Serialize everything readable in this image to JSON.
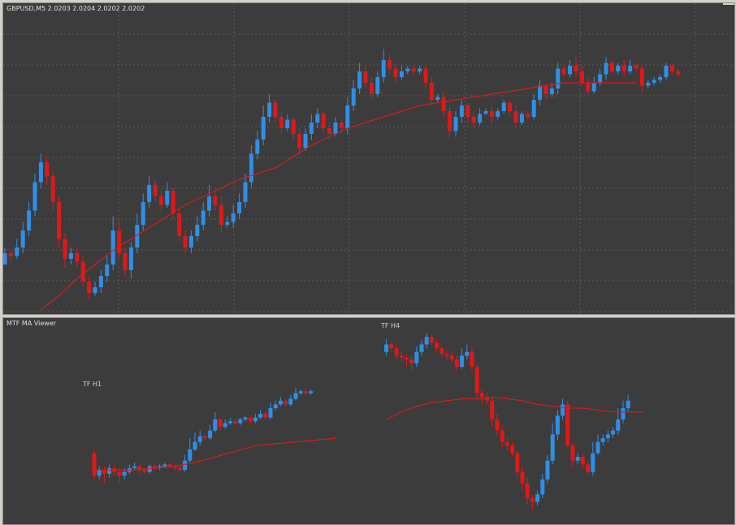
{
  "chart": {
    "symbol_header": "GBPUSD,M5  2.0203 2.0204 2.0202 2.0202",
    "indicator_name": "MTF MA Viewer",
    "tf_h1_label": "TF H1",
    "tf_h4_label": "TF H4"
  },
  "colors": {
    "background": "#3c3c3c",
    "grid": "#5a5a5a",
    "bull": "#2f8fe8",
    "bear": "#e01818",
    "doji": "#22c422",
    "ma": "#d21e1e",
    "frame": "#d4d0c8"
  },
  "chart_data": [
    {
      "type": "candlestick",
      "title": "GBPUSD,M5",
      "price_readout": "2.0203 2.0204 2.0202 2.0202",
      "ylim": [
        0,
        100
      ],
      "grid": true,
      "candles": [
        [
          16,
          20,
          18,
          22
        ],
        [
          20,
          19,
          21,
          17
        ],
        [
          19,
          22,
          25,
          18
        ],
        [
          22,
          28,
          31,
          20
        ],
        [
          28,
          35,
          38,
          26
        ],
        [
          35,
          45,
          48,
          33
        ],
        [
          45,
          52,
          55,
          43
        ],
        [
          52,
          47,
          54,
          44
        ],
        [
          47,
          38,
          49,
          35
        ],
        [
          38,
          25,
          40,
          22
        ],
        [
          25,
          18,
          27,
          15
        ],
        [
          18,
          20,
          22,
          16
        ],
        [
          20,
          17,
          22,
          15
        ],
        [
          17,
          10,
          19,
          8
        ],
        [
          10,
          6,
          12,
          4
        ],
        [
          6,
          8,
          10,
          5
        ],
        [
          8,
          12,
          14,
          6
        ],
        [
          12,
          16,
          19,
          10
        ],
        [
          16,
          28,
          33,
          14
        ],
        [
          28,
          20,
          31,
          18
        ],
        [
          20,
          14,
          22,
          12
        ],
        [
          14,
          22,
          24,
          11
        ],
        [
          22,
          30,
          34,
          20
        ],
        [
          30,
          38,
          41,
          28
        ],
        [
          38,
          44,
          47,
          36
        ],
        [
          44,
          40,
          46,
          38
        ],
        [
          40,
          37,
          42,
          35
        ],
        [
          37,
          42,
          45,
          36
        ],
        [
          42,
          34,
          43,
          32
        ],
        [
          34,
          26,
          36,
          24
        ],
        [
          26,
          22,
          28,
          20
        ],
        [
          22,
          26,
          28,
          20
        ],
        [
          26,
          30,
          33,
          24
        ],
        [
          30,
          35,
          38,
          28
        ],
        [
          35,
          40,
          44,
          33
        ],
        [
          40,
          37,
          42,
          35
        ],
        [
          37,
          30,
          40,
          27
        ],
        [
          30,
          31,
          33,
          29
        ],
        [
          31,
          34,
          37,
          29
        ],
        [
          34,
          38,
          41,
          32
        ],
        [
          38,
          45,
          48,
          36
        ],
        [
          45,
          55,
          58,
          43
        ],
        [
          55,
          60,
          63,
          53
        ],
        [
          60,
          68,
          72,
          58
        ],
        [
          68,
          73,
          76,
          66
        ],
        [
          73,
          68,
          74,
          66
        ],
        [
          68,
          64,
          70,
          62
        ],
        [
          64,
          67,
          69,
          63
        ],
        [
          67,
          62,
          68,
          60
        ],
        [
          62,
          57,
          64,
          55
        ],
        [
          57,
          62,
          64,
          56
        ],
        [
          62,
          66,
          69,
          60
        ],
        [
          66,
          69,
          71,
          64
        ],
        [
          69,
          64,
          70,
          62
        ],
        [
          64,
          62,
          66,
          60
        ],
        [
          62,
          66,
          68,
          61
        ],
        [
          66,
          64,
          67,
          62
        ],
        [
          64,
          72,
          75,
          62
        ],
        [
          72,
          78,
          81,
          70
        ],
        [
          78,
          84,
          87,
          76
        ],
        [
          84,
          80,
          86,
          78
        ],
        [
          80,
          76,
          82,
          74
        ],
        [
          76,
          82,
          84,
          75
        ],
        [
          82,
          88,
          92,
          80
        ],
        [
          88,
          85,
          90,
          83
        ],
        [
          85,
          82,
          87,
          80
        ],
        [
          82,
          84,
          86,
          81
        ],
        [
          84,
          85,
          86,
          83
        ],
        [
          85,
          84,
          86,
          83
        ],
        [
          84,
          85,
          86,
          83
        ],
        [
          85,
          80,
          86,
          78
        ],
        [
          80,
          74,
          82,
          72
        ],
        [
          74,
          75,
          76,
          73
        ],
        [
          75,
          70,
          77,
          68
        ],
        [
          70,
          63,
          72,
          61
        ],
        [
          63,
          68,
          70,
          61
        ],
        [
          68,
          72,
          74,
          66
        ],
        [
          72,
          68,
          73,
          66
        ],
        [
          68,
          66,
          70,
          64
        ],
        [
          66,
          69,
          71,
          65
        ],
        [
          69,
          70,
          71,
          69
        ],
        [
          70,
          68,
          72,
          66
        ],
        [
          68,
          70,
          71,
          67
        ],
        [
          70,
          73,
          74,
          69
        ],
        [
          73,
          70,
          74,
          68
        ],
        [
          70,
          66,
          72,
          64
        ],
        [
          66,
          69,
          70,
          65
        ],
        [
          69,
          68,
          70,
          67
        ],
        [
          68,
          74,
          76,
          67
        ],
        [
          74,
          79,
          81,
          72
        ],
        [
          79,
          76,
          80,
          74
        ],
        [
          76,
          78,
          80,
          75
        ],
        [
          78,
          85,
          87,
          76
        ],
        [
          85,
          83,
          86,
          82
        ],
        [
          83,
          86,
          88,
          82
        ],
        [
          86,
          84,
          89,
          82
        ],
        [
          84,
          80,
          86,
          79
        ],
        [
          80,
          77,
          82,
          76
        ],
        [
          77,
          80,
          82,
          76
        ],
        [
          80,
          83,
          85,
          79
        ],
        [
          83,
          87,
          89,
          81
        ],
        [
          87,
          84,
          88,
          83
        ],
        [
          84,
          86,
          87,
          83
        ],
        [
          86,
          84,
          88,
          82
        ],
        [
          84,
          86,
          88,
          83
        ],
        [
          86,
          85,
          87,
          84
        ],
        [
          85,
          79,
          86,
          77
        ],
        [
          79,
          80,
          81,
          78
        ],
        [
          80,
          81,
          82,
          79
        ],
        [
          81,
          82,
          83,
          80
        ],
        [
          82,
          86,
          87,
          81
        ],
        [
          86,
          84,
          87,
          83
        ],
        [
          84,
          83,
          85,
          82
        ]
      ],
      "ma": [
        0,
        5,
        11,
        16,
        21,
        25,
        29,
        33,
        37,
        40,
        43,
        46,
        48,
        50,
        54,
        58,
        61,
        64,
        66,
        68,
        70,
        72,
        73,
        74,
        75,
        76,
        77,
        78,
        79,
        80,
        80,
        80,
        80,
        80
      ],
      "ma_start_index": 6,
      "ma_step": 3
    },
    {
      "type": "candlestick",
      "title": "MTF MA Viewer",
      "ylim": [
        0,
        100
      ],
      "segments": [
        {
          "name": "TF H1",
          "start_index": 0,
          "candles": [
            [
              34,
              22,
              36,
              20
            ],
            [
              22,
              25,
              27,
              20
            ],
            [
              25,
              23,
              27,
              18
            ],
            [
              23,
              26,
              28,
              21
            ],
            [
              26,
              24,
              28,
              22
            ],
            [
              24,
              22,
              26,
              18
            ],
            [
              22,
              24,
              26,
              20
            ],
            [
              24,
              26,
              28,
              23
            ],
            [
              26,
              27,
              29,
              25
            ],
            [
              27,
              25,
              28,
              23
            ],
            [
              25,
              24,
              26,
              23
            ],
            [
              24,
              27,
              28,
              23
            ],
            [
              27,
              26,
              28,
              25
            ],
            [
              26,
              27,
              28,
              25
            ],
            [
              27,
              28,
              29,
              26
            ],
            [
              28,
              27,
              29,
              26
            ],
            [
              27,
              26,
              28,
              25
            ],
            [
              26,
              25,
              27,
              24
            ],
            [
              25,
              30,
              33,
              24
            ],
            [
              30,
              36,
              42,
              29
            ],
            [
              36,
              40,
              45,
              35
            ],
            [
              40,
              43,
              46,
              38
            ],
            [
              43,
              42,
              44,
              41
            ],
            [
              42,
              46,
              49,
              41
            ],
            [
              46,
              52,
              56,
              45
            ],
            [
              52,
              48,
              53,
              46
            ],
            [
              48,
              50,
              52,
              47
            ],
            [
              50,
              51,
              53,
              49
            ],
            [
              51,
              50,
              52,
              49
            ],
            [
              50,
              52,
              53,
              49
            ],
            [
              52,
              53,
              54,
              51
            ],
            [
              53,
              51,
              54,
              50
            ],
            [
              51,
              53,
              55,
              50
            ],
            [
              53,
              55,
              57,
              52
            ],
            [
              55,
              53,
              56,
              52
            ],
            [
              53,
              58,
              61,
              52
            ],
            [
              58,
              60,
              62,
              57
            ],
            [
              60,
              62,
              64,
              59
            ],
            [
              62,
              60,
              63,
              59
            ],
            [
              60,
              63,
              65,
              59
            ],
            [
              63,
              66,
              69,
              62
            ],
            [
              66,
              67,
              68,
              65
            ],
            [
              67,
              66,
              68,
              65
            ],
            [
              66,
              67,
              68,
              65
            ]
          ],
          "ma": [
            25,
            25,
            25,
            26,
            27,
            29,
            32,
            35,
            38,
            39,
            40,
            41,
            42
          ],
          "ma_step": 4
        },
        {
          "name": "TF H4",
          "start_index": 58,
          "candles": [
            [
              88,
              92,
              95,
              86
            ],
            [
              92,
              90,
              94,
              88
            ],
            [
              90,
              86,
              92,
              84
            ],
            [
              86,
              85,
              88,
              82
            ],
            [
              85,
              84,
              87,
              80
            ],
            [
              84,
              82,
              86,
              78
            ],
            [
              82,
              88,
              91,
              80
            ],
            [
              88,
              92,
              94,
              86
            ],
            [
              92,
              96,
              98,
              90
            ],
            [
              96,
              93,
              97,
              91
            ],
            [
              93,
              90,
              95,
              88
            ],
            [
              90,
              87,
              92,
              85
            ],
            [
              87,
              86,
              89,
              84
            ],
            [
              86,
              84,
              88,
              82
            ],
            [
              84,
              80,
              86,
              78
            ],
            [
              80,
              86,
              90,
              79
            ],
            [
              86,
              88,
              92,
              84
            ],
            [
              88,
              80,
              90,
              78
            ],
            [
              80,
              66,
              82,
              62
            ],
            [
              66,
              64,
              68,
              60
            ],
            [
              64,
              62,
              66,
              60
            ],
            [
              62,
              52,
              64,
              48
            ],
            [
              52,
              46,
              55,
              43
            ],
            [
              46,
              40,
              49,
              37
            ],
            [
              40,
              38,
              42,
              35
            ],
            [
              38,
              34,
              40,
              32
            ],
            [
              34,
              24,
              36,
              21
            ],
            [
              24,
              18,
              27,
              14
            ],
            [
              18,
              10,
              21,
              7
            ],
            [
              10,
              8,
              12,
              4
            ],
            [
              8,
              12,
              14,
              6
            ],
            [
              12,
              20,
              23,
              10
            ],
            [
              20,
              30,
              33,
              18
            ],
            [
              30,
              44,
              50,
              28
            ],
            [
              44,
              54,
              57,
              41
            ],
            [
              54,
              60,
              63,
              52
            ],
            [
              60,
              38,
              62,
              36
            ],
            [
              38,
              30,
              40,
              27
            ],
            [
              30,
              32,
              34,
              28
            ],
            [
              32,
              28,
              34,
              26
            ],
            [
              28,
              24,
              30,
              22
            ],
            [
              24,
              34,
              40,
              22
            ],
            [
              34,
              40,
              44,
              33
            ],
            [
              40,
              42,
              44,
              38
            ],
            [
              42,
              44,
              46,
              40
            ],
            [
              44,
              46,
              48,
              42
            ],
            [
              46,
              52,
              58,
              44
            ],
            [
              52,
              58,
              62,
              50
            ],
            [
              58,
              62,
              65,
              56
            ]
          ],
          "ma": [
            52,
            56,
            59,
            61,
            62,
            63,
            63,
            64,
            63,
            62,
            60,
            59,
            58,
            58,
            57,
            56,
            56,
            56
          ],
          "ma_step": 3
        }
      ]
    }
  ]
}
